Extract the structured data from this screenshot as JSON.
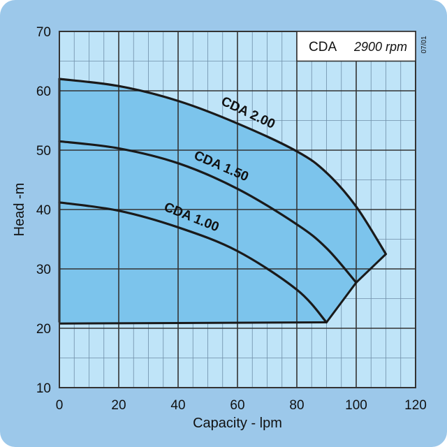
{
  "chart_data": {
    "type": "line",
    "title": "",
    "xlabel": "Capacity - lpm",
    "ylabel": "Head -m",
    "xlim": [
      0,
      120
    ],
    "ylim": [
      10,
      70
    ],
    "x_ticks": [
      0,
      20,
      40,
      60,
      80,
      100,
      120
    ],
    "y_ticks": [
      10,
      20,
      30,
      40,
      50,
      60,
      70
    ],
    "grid": true,
    "legend": {
      "model": "CDA",
      "speed": "2900 rpm",
      "placement": "top-right"
    },
    "code": "07/01",
    "series": [
      {
        "name": "CDA 2.00",
        "x": [
          0,
          20,
          40,
          60,
          80,
          90,
          100,
          110
        ],
        "y": [
          62.0,
          60.8,
          58.3,
          54.5,
          49.8,
          46.2,
          40.5,
          32.5
        ]
      },
      {
        "name": "CDA 1.50",
        "x": [
          0,
          20,
          40,
          60,
          80,
          90,
          100
        ],
        "y": [
          51.5,
          50.3,
          47.8,
          43.5,
          37.5,
          33.5,
          27.7
        ]
      },
      {
        "name": "CDA 1.00",
        "x": [
          0,
          20,
          40,
          60,
          80,
          90
        ],
        "y": [
          41.2,
          39.8,
          37.0,
          33.0,
          26.5,
          21.0
        ]
      }
    ],
    "envelope": {
      "x": [
        0,
        0,
        20,
        40,
        60,
        80,
        90,
        100,
        110,
        100,
        90,
        0
      ],
      "y": [
        21.0,
        62.0,
        60.8,
        58.3,
        54.5,
        49.8,
        46.2,
        40.5,
        32.5,
        27.7,
        21.0,
        20.8
      ]
    },
    "colors": {
      "panel": "#9cc8ea",
      "plot_background": "#bfe4f8",
      "operating_region": "#7cc4ec",
      "grid": "#333333",
      "curve": "#1a1a1a"
    }
  }
}
